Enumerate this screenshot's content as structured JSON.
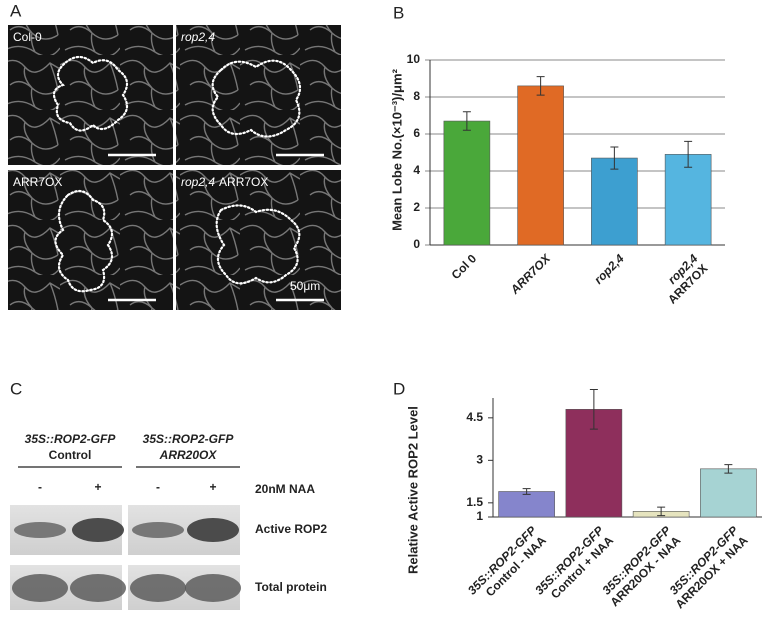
{
  "panels": {
    "a": "A",
    "b": "B",
    "c": "C",
    "d": "D"
  },
  "micrographs": [
    [
      "Col-0"
    ],
    [
      "rop2,4"
    ],
    [
      "ARR7OX"
    ],
    [
      "rop2,4",
      "ARR7OX"
    ]
  ],
  "scale_bar": "50μm",
  "blot": {
    "groups": [
      [
        "35S::ROP2-GFP",
        "Control"
      ],
      [
        "35S::ROP2-GFP",
        "ARR20OX"
      ]
    ],
    "lanes": [
      "-",
      "+",
      "-",
      "+"
    ],
    "treatment": "20nM NAA",
    "rows": [
      "Active ROP2",
      "Total protein"
    ]
  },
  "chart_data": [
    {
      "type": "bar",
      "y_label": "Mean Lobe No.(×10⁻³)/μm²",
      "categories": [
        [
          "Col 0"
        ],
        [
          "ARR7OX"
        ],
        [
          "rop2,4"
        ],
        [
          "rop2,4",
          "ARR7OX"
        ]
      ],
      "values": [
        6.7,
        8.6,
        4.7,
        4.9
      ],
      "errors": [
        0.5,
        0.5,
        0.6,
        0.7
      ],
      "colors": [
        "#4aa83a",
        "#e06a25",
        "#3d9fd0",
        "#55b5e0"
      ],
      "ylim": [
        0,
        10
      ],
      "yticks": [
        0,
        2,
        4,
        6,
        8,
        10
      ],
      "grid": true
    },
    {
      "type": "bar",
      "y_label": "Relative Active ROP2 Level",
      "categories": [
        [
          "35S::ROP2-GFP",
          "Control - NAA"
        ],
        [
          "35S::ROP2-GFP",
          "Control + NAA"
        ],
        [
          "35S::ROP2-GFP",
          "ARR20OX - NAA"
        ],
        [
          "35S::ROP2-GFP",
          "ARR20OX + NAA"
        ]
      ],
      "values": [
        1.9,
        4.8,
        1.2,
        2.7
      ],
      "errors": [
        0.1,
        0.7,
        0.15,
        0.15
      ],
      "colors": [
        "#8585cc",
        "#8e2f5c",
        "#e6e4bf",
        "#a6d3d3"
      ],
      "ylim": [
        1,
        5.2
      ],
      "yticks": [
        1,
        1.5,
        3,
        4.5
      ],
      "grid": false
    }
  ]
}
